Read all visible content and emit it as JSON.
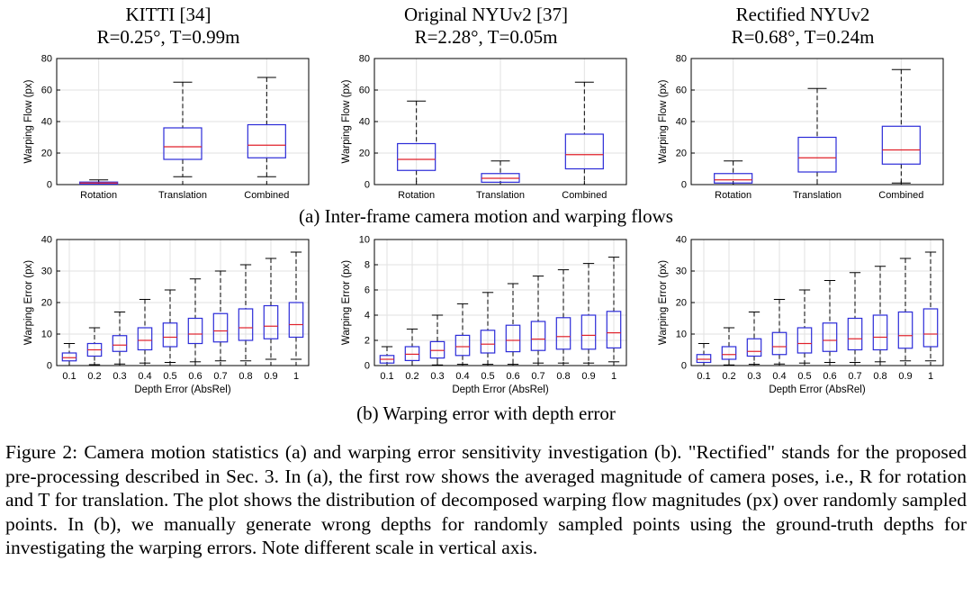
{
  "titles": [
    {
      "line1": "KITTI [34]",
      "line2": "R=0.25°, T=0.99m"
    },
    {
      "line1": "Original NYUv2 [37]",
      "line2": "R=2.28°, T=0.05m"
    },
    {
      "line1": "Rectified NYUv2",
      "line2": "R=0.68°, T=0.24m"
    }
  ],
  "subcaptions": {
    "a": "(a) Inter-frame camera motion and warping flows",
    "b": "(b) Warping error with depth error"
  },
  "caption": "Figure 2: Camera motion statistics (a) and warping error sensitivity investigation (b). \"Rectified\" stands for the proposed pre-processing described in Sec. 3. In (a), the first row shows the averaged magnitude of camera poses, i.e., R for rotation and T for translation. The plot shows the distribution of decomposed warping flow magnitudes (px) over randomly sampled points. In (b), we manually generate wrong depths for randomly sampled points using the ground-truth depths for investigating the warping errors. Note different scale in vertical axis.",
  "colors": {
    "box": "#2b2bd8",
    "median": "#e0202a",
    "whisker": "#000000",
    "grid": "#e2e2e2"
  },
  "chart_data": [
    {
      "type": "box",
      "title": "KITTI [34]",
      "ylabel": "Warping Flow (px)",
      "xlabel": "",
      "ylim": [
        0,
        80
      ],
      "yticks": [
        0,
        20,
        40,
        60,
        80
      ],
      "categories": [
        "Rotation",
        "Translation",
        "Combined"
      ],
      "boxes": [
        {
          "min": 0,
          "q1": 0.3,
          "median": 1,
          "q3": 1.6,
          "max": 3
        },
        {
          "min": 5,
          "q1": 16,
          "median": 24,
          "q3": 36,
          "max": 65
        },
        {
          "min": 5,
          "q1": 17,
          "median": 25,
          "q3": 38,
          "max": 68
        }
      ]
    },
    {
      "type": "box",
      "title": "Original NYUv2 [37]",
      "ylabel": "Warping Flow (px)",
      "xlabel": "",
      "ylim": [
        0,
        80
      ],
      "yticks": [
        0,
        20,
        40,
        60,
        80
      ],
      "categories": [
        "Rotation",
        "Translation",
        "Combined"
      ],
      "boxes": [
        {
          "min": 0,
          "q1": 9,
          "median": 16,
          "q3": 26,
          "max": 53
        },
        {
          "min": 0,
          "q1": 1.5,
          "median": 4,
          "q3": 7,
          "max": 15
        },
        {
          "min": 0,
          "q1": 10,
          "median": 19,
          "q3": 32,
          "max": 65
        }
      ]
    },
    {
      "type": "box",
      "title": "Rectified NYUv2",
      "ylabel": "Warping Flow (px)",
      "xlabel": "",
      "ylim": [
        0,
        80
      ],
      "yticks": [
        0,
        20,
        40,
        60,
        80
      ],
      "categories": [
        "Rotation",
        "Translation",
        "Combined"
      ],
      "boxes": [
        {
          "min": 0,
          "q1": 1,
          "median": 3,
          "q3": 7,
          "max": 15
        },
        {
          "min": 0,
          "q1": 8,
          "median": 17,
          "q3": 30,
          "max": 61
        },
        {
          "min": 1,
          "q1": 13,
          "median": 22,
          "q3": 37,
          "max": 73
        }
      ]
    },
    {
      "type": "box",
      "ylabel": "Warping Error (px)",
      "xlabel": "Depth Error (AbsRel)",
      "ylim": [
        0,
        40
      ],
      "yticks": [
        0,
        10,
        20,
        30,
        40
      ],
      "categories": [
        "0.1",
        "0.2",
        "0.3",
        "0.4",
        "0.5",
        "0.6",
        "0.7",
        "0.8",
        "0.9",
        "1"
      ],
      "boxes": [
        {
          "min": 0,
          "q1": 1.5,
          "median": 2.5,
          "q3": 4,
          "max": 7
        },
        {
          "min": 0.3,
          "q1": 3,
          "median": 5,
          "q3": 7,
          "max": 12
        },
        {
          "min": 0.5,
          "q1": 4.5,
          "median": 6.5,
          "q3": 9.5,
          "max": 17
        },
        {
          "min": 0.8,
          "q1": 5,
          "median": 8,
          "q3": 12,
          "max": 21
        },
        {
          "min": 1,
          "q1": 6,
          "median": 9,
          "q3": 13.5,
          "max": 24
        },
        {
          "min": 1.2,
          "q1": 7,
          "median": 10,
          "q3": 15,
          "max": 27.5
        },
        {
          "min": 1.5,
          "q1": 7.5,
          "median": 11,
          "q3": 16.5,
          "max": 30
        },
        {
          "min": 1.5,
          "q1": 8,
          "median": 12,
          "q3": 18,
          "max": 32
        },
        {
          "min": 2,
          "q1": 8.5,
          "median": 12.5,
          "q3": 19,
          "max": 34
        },
        {
          "min": 2,
          "q1": 9,
          "median": 13,
          "q3": 20,
          "max": 36
        }
      ]
    },
    {
      "type": "box",
      "ylabel": "Warping Error (px)",
      "xlabel": "Depth Error (AbsRel)",
      "ylim": [
        0,
        10
      ],
      "yticks": [
        0,
        2,
        4,
        6,
        8,
        10
      ],
      "categories": [
        "0.1",
        "0.2",
        "0.3",
        "0.4",
        "0.5",
        "0.6",
        "0.7",
        "0.8",
        "0.9",
        "1"
      ],
      "boxes": [
        {
          "min": 0,
          "q1": 0.2,
          "median": 0.5,
          "q3": 0.8,
          "max": 1.5
        },
        {
          "min": 0,
          "q1": 0.4,
          "median": 0.9,
          "q3": 1.5,
          "max": 2.9
        },
        {
          "min": 0.05,
          "q1": 0.6,
          "median": 1.2,
          "q3": 1.9,
          "max": 4
        },
        {
          "min": 0.1,
          "q1": 0.8,
          "median": 1.5,
          "q3": 2.4,
          "max": 4.9
        },
        {
          "min": 0.1,
          "q1": 1,
          "median": 1.7,
          "q3": 2.8,
          "max": 5.8
        },
        {
          "min": 0.1,
          "q1": 1.1,
          "median": 2,
          "q3": 3.2,
          "max": 6.5
        },
        {
          "min": 0.2,
          "q1": 1.2,
          "median": 2.1,
          "q3": 3.5,
          "max": 7.1
        },
        {
          "min": 0.2,
          "q1": 1.3,
          "median": 2.3,
          "q3": 3.8,
          "max": 7.6
        },
        {
          "min": 0.2,
          "q1": 1.3,
          "median": 2.4,
          "q3": 4,
          "max": 8.1
        },
        {
          "min": 0.3,
          "q1": 1.4,
          "median": 2.6,
          "q3": 4.3,
          "max": 8.6
        }
      ]
    },
    {
      "type": "box",
      "ylabel": "Warping Error (px)",
      "xlabel": "Depth Error (AbsRel)",
      "ylim": [
        0,
        40
      ],
      "yticks": [
        0,
        10,
        20,
        30,
        40
      ],
      "categories": [
        "0.1",
        "0.2",
        "0.3",
        "0.4",
        "0.5",
        "0.6",
        "0.7",
        "0.8",
        "0.9",
        "1"
      ],
      "boxes": [
        {
          "min": 0,
          "q1": 1,
          "median": 2,
          "q3": 3.5,
          "max": 7
        },
        {
          "min": 0.2,
          "q1": 2,
          "median": 3.5,
          "q3": 6,
          "max": 12
        },
        {
          "min": 0.4,
          "q1": 3,
          "median": 4.5,
          "q3": 8.5,
          "max": 17
        },
        {
          "min": 0.5,
          "q1": 3.5,
          "median": 6,
          "q3": 10.5,
          "max": 21
        },
        {
          "min": 0.8,
          "q1": 4,
          "median": 7,
          "q3": 12,
          "max": 24
        },
        {
          "min": 1,
          "q1": 4.5,
          "median": 8,
          "q3": 13.5,
          "max": 27
        },
        {
          "min": 1,
          "q1": 5,
          "median": 8.5,
          "q3": 15,
          "max": 29.5
        },
        {
          "min": 1.2,
          "q1": 5,
          "median": 9,
          "q3": 16,
          "max": 31.5
        },
        {
          "min": 1.5,
          "q1": 5.5,
          "median": 9.5,
          "q3": 17,
          "max": 34
        },
        {
          "min": 1.5,
          "q1": 6,
          "median": 10,
          "q3": 18,
          "max": 36
        }
      ]
    }
  ]
}
